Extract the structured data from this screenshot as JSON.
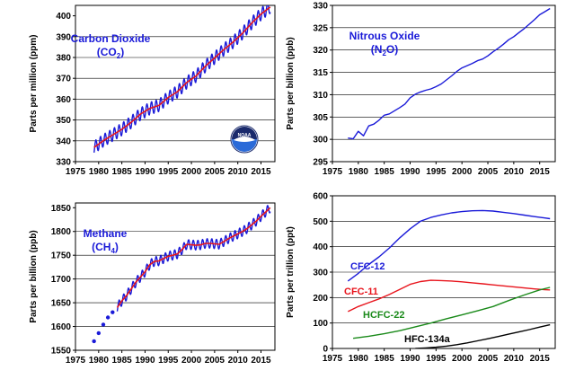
{
  "colors": {
    "blue": "#1a1ad8",
    "red": "#e8141c",
    "green": "#1a8a1a",
    "black": "#000000"
  },
  "chart_data": [
    {
      "type": "line",
      "title_line1": "Carbon Dioxide",
      "title_line2": "(CO2)",
      "ylabel": "Parts per million (ppm)",
      "xlim": [
        1975,
        2018
      ],
      "ylim": [
        330,
        405
      ],
      "xticks": [
        1975,
        1980,
        1985,
        1990,
        1995,
        2000,
        2005,
        2010,
        2015
      ],
      "yticks": [
        330,
        340,
        350,
        360,
        370,
        380,
        390,
        400
      ],
      "seasonal_amplitude": 3,
      "logo": "noaa-logo-icon",
      "series": [
        {
          "kind": "monthly",
          "color": "blue",
          "x": [
            1979,
            1981,
            1983,
            1985,
            1987,
            1989,
            1991,
            1993,
            1995,
            1997,
            1999,
            2001,
            2003,
            2005,
            2007,
            2009,
            2011,
            2013,
            2015,
            2017
          ],
          "y": [
            336.8,
            340.1,
            342.8,
            345.5,
            348.9,
            352.8,
            355.5,
            357.0,
            360.8,
            363.6,
            368.0,
            371.1,
            375.8,
            379.8,
            383.8,
            387.4,
            391.6,
            396.5,
            400.8,
            404.2
          ]
        },
        {
          "kind": "trend",
          "color": "red",
          "x": [
            1979,
            1981,
            1983,
            1985,
            1987,
            1989,
            1991,
            1993,
            1995,
            1997,
            1999,
            2001,
            2003,
            2005,
            2007,
            2009,
            2011,
            2013,
            2015,
            2017
          ],
          "y": [
            336.8,
            340.1,
            342.8,
            345.5,
            348.9,
            352.8,
            355.5,
            357.0,
            360.8,
            363.6,
            368.0,
            371.1,
            375.8,
            379.8,
            383.8,
            387.4,
            391.6,
            396.5,
            400.8,
            404.2
          ]
        }
      ]
    },
    {
      "type": "line",
      "title_line1": "Nitrous Oxide",
      "title_line2": "(N2O)",
      "ylabel": "Parts per billion (ppb)",
      "xlim": [
        1975,
        2018
      ],
      "ylim": [
        295,
        330
      ],
      "xticks": [
        1975,
        1980,
        1985,
        1990,
        1995,
        2000,
        2005,
        2010,
        2015
      ],
      "yticks": [
        295,
        300,
        305,
        310,
        315,
        320,
        325,
        330
      ],
      "series": [
        {
          "kind": "monthly",
          "color": "blue",
          "x": [
            1978,
            1979,
            1980,
            1981,
            1982,
            1983,
            1984,
            1985,
            1986,
            1987,
            1988,
            1989,
            1990,
            1991,
            1992,
            1993,
            1994,
            1995,
            1996,
            1997,
            1998,
            1999,
            2000,
            2001,
            2002,
            2003,
            2004,
            2005,
            2006,
            2007,
            2008,
            2009,
            2010,
            2011,
            2012,
            2013,
            2014,
            2015,
            2016,
            2017
          ],
          "y": [
            300.3,
            300.1,
            301.8,
            300.8,
            303.0,
            303.4,
            304.3,
            305.4,
            305.7,
            306.4,
            307.1,
            307.9,
            309.3,
            310.1,
            310.6,
            311.0,
            311.3,
            311.8,
            312.4,
            313.3,
            314.2,
            315.2,
            316.0,
            316.5,
            317.0,
            317.6,
            318.0,
            318.7,
            319.6,
            320.4,
            321.3,
            322.3,
            323.0,
            323.9,
            324.8,
            325.8,
            326.8,
            327.9,
            328.6,
            329.3
          ]
        }
      ]
    },
    {
      "type": "line",
      "title_line1": "Methane",
      "title_line2": "(CH4)",
      "ylabel": "Parts per billion (ppb)",
      "xlim": [
        1975,
        2018
      ],
      "ylim": [
        1550,
        1860
      ],
      "xticks": [
        1975,
        1980,
        1985,
        1990,
        1995,
        2000,
        2005,
        2010,
        2015
      ],
      "yticks": [
        1550,
        1600,
        1650,
        1700,
        1750,
        1800,
        1850
      ],
      "seasonal_amplitude": 10,
      "series": [
        {
          "kind": "points",
          "color": "blue",
          "x": [
            1979.0,
            1980.0,
            1981.0,
            1982.0,
            1983.0
          ],
          "y": [
            1569,
            1586,
            1604,
            1619,
            1630
          ]
        },
        {
          "kind": "monthly",
          "color": "blue",
          "x": [
            1984,
            1985,
            1986,
            1987,
            1988,
            1989,
            1990,
            1991,
            1992,
            1993,
            1994,
            1995,
            1996,
            1997,
            1998,
            1999,
            2000,
            2001,
            2002,
            2003,
            2004,
            2005,
            2006,
            2007,
            2008,
            2009,
            2010,
            2011,
            2012,
            2013,
            2014,
            2015,
            2016,
            2017
          ],
          "y": [
            1640,
            1654,
            1665,
            1679,
            1693,
            1704,
            1715,
            1730,
            1737,
            1738,
            1743,
            1748,
            1750,
            1753,
            1762,
            1773,
            1772,
            1771,
            1772,
            1775,
            1775,
            1774,
            1773,
            1779,
            1785,
            1790,
            1795,
            1800,
            1806,
            1814,
            1822,
            1832,
            1841,
            1850
          ]
        },
        {
          "kind": "trend",
          "color": "red",
          "x": [
            1984,
            1985,
            1986,
            1987,
            1988,
            1989,
            1990,
            1991,
            1992,
            1993,
            1994,
            1995,
            1996,
            1997,
            1998,
            1999,
            2000,
            2001,
            2002,
            2003,
            2004,
            2005,
            2006,
            2007,
            2008,
            2009,
            2010,
            2011,
            2012,
            2013,
            2014,
            2015,
            2016,
            2017
          ],
          "y": [
            1640,
            1654,
            1665,
            1679,
            1693,
            1704,
            1715,
            1730,
            1737,
            1738,
            1743,
            1748,
            1750,
            1753,
            1762,
            1773,
            1772,
            1771,
            1772,
            1775,
            1775,
            1774,
            1773,
            1779,
            1785,
            1790,
            1795,
            1800,
            1806,
            1814,
            1822,
            1832,
            1841,
            1850
          ]
        }
      ]
    },
    {
      "type": "line",
      "ylabel": "Parts per trillion (ppt)",
      "xlim": [
        1975,
        2018
      ],
      "ylim": [
        0,
        600
      ],
      "xticks": [
        1975,
        1980,
        1985,
        1990,
        1995,
        2000,
        2005,
        2010,
        2015
      ],
      "yticks": [
        0,
        100,
        200,
        300,
        400,
        500,
        600
      ],
      "series": [
        {
          "name": "CFC-12",
          "color": "blue",
          "x": [
            1978,
            1980,
            1982,
            1984,
            1986,
            1988,
            1990,
            1992,
            1994,
            1996,
            1998,
            2000,
            2002,
            2004,
            2006,
            2008,
            2010,
            2012,
            2014,
            2016,
            2017
          ],
          "y": [
            265,
            295,
            330,
            360,
            395,
            435,
            470,
            500,
            515,
            525,
            533,
            538,
            541,
            542,
            540,
            535,
            530,
            524,
            518,
            513,
            510
          ]
        },
        {
          "name": "CFC-11",
          "color": "red",
          "x": [
            1978,
            1980,
            1982,
            1984,
            1986,
            1988,
            1990,
            1992,
            1994,
            1996,
            1998,
            2000,
            2002,
            2004,
            2006,
            2008,
            2010,
            2012,
            2014,
            2016,
            2017
          ],
          "y": [
            145,
            165,
            180,
            195,
            212,
            232,
            252,
            263,
            268,
            267,
            265,
            262,
            258,
            254,
            250,
            246,
            242,
            238,
            234,
            231,
            230
          ]
        },
        {
          "name": "HCFC-22",
          "color": "green",
          "x": [
            1979,
            1982,
            1985,
            1988,
            1991,
            1994,
            1997,
            2000,
            2003,
            2006,
            2009,
            2012,
            2015,
            2017
          ],
          "y": [
            40,
            48,
            58,
            70,
            85,
            100,
            117,
            132,
            148,
            165,
            188,
            210,
            230,
            240
          ]
        },
        {
          "name": "HFC-134a",
          "color": "black",
          "x": [
            1991,
            1993,
            1995,
            1997,
            1999,
            2001,
            2003,
            2005,
            2007,
            2009,
            2011,
            2013,
            2015,
            2017
          ],
          "y": [
            0,
            2,
            5,
            9,
            15,
            22,
            30,
            38,
            47,
            56,
            65,
            74,
            84,
            93
          ]
        }
      ]
    }
  ]
}
